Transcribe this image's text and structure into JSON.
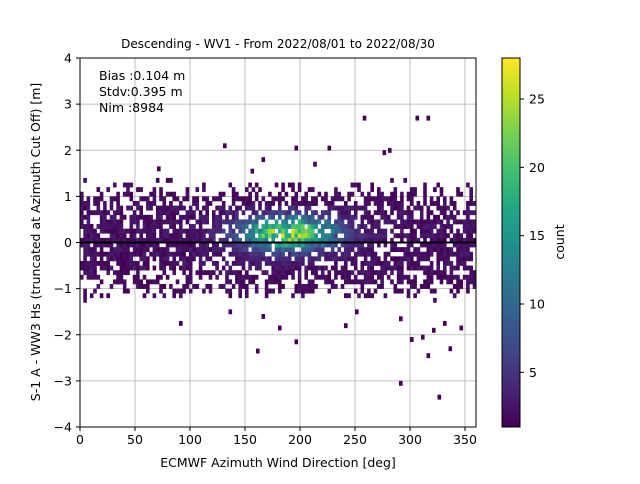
{
  "chart_data": {
    "type": "heatmap",
    "title": "Descending - WV1 - From 2022/08/01 to 2022/08/30",
    "xlabel": "ECMWF Azimuth Wind Direction [deg]",
    "ylabel": "S-1 A - WW3 Hs (truncated at Azimuth Cut Off) [m]",
    "xlim": [
      0,
      360
    ],
    "ylim": [
      -4,
      4
    ],
    "xticks": [
      "0",
      "50",
      "100",
      "150",
      "200",
      "250",
      "300",
      "350"
    ],
    "yticks": [
      "−4",
      "−3",
      "−2",
      "−1",
      "0",
      "1",
      "2",
      "3",
      "4"
    ],
    "grid": true,
    "colormap": "viridis",
    "colorbar": {
      "label": "count",
      "range": [
        1,
        28
      ],
      "ticks": [
        "5",
        "10",
        "15",
        "20",
        "25"
      ]
    },
    "stats_box": {
      "bias": "Bias :0.104 m",
      "stdv": "Stdv:0.395 m",
      "nim": "Nim :8984"
    },
    "zero_line": 0,
    "density_summary": {
      "core_band_y": [
        -1,
        1
      ],
      "peak_x": 190,
      "peak_y": 0.2,
      "peak_count": 28
    },
    "outliers": [
      {
        "x": 130,
        "y": 2.1
      },
      {
        "x": 257,
        "y": 2.7
      },
      {
        "x": 305,
        "y": 2.7
      },
      {
        "x": 315,
        "y": 2.7
      },
      {
        "x": 275,
        "y": 1.95
      },
      {
        "x": 280,
        "y": 2.0
      },
      {
        "x": 195,
        "y": 2.05
      },
      {
        "x": 225,
        "y": 2.05
      },
      {
        "x": 165,
        "y": 1.8
      },
      {
        "x": 212,
        "y": 1.7
      },
      {
        "x": 70,
        "y": 1.6
      },
      {
        "x": 155,
        "y": 1.55
      },
      {
        "x": 90,
        "y": -1.75
      },
      {
        "x": 135,
        "y": -1.5
      },
      {
        "x": 165,
        "y": -1.6
      },
      {
        "x": 180,
        "y": -1.85
      },
      {
        "x": 195,
        "y": -2.15
      },
      {
        "x": 160,
        "y": -2.35
      },
      {
        "x": 290,
        "y": -3.05
      },
      {
        "x": 325,
        "y": -3.35
      },
      {
        "x": 315,
        "y": -2.45
      },
      {
        "x": 335,
        "y": -2.3
      },
      {
        "x": 300,
        "y": -2.1
      },
      {
        "x": 310,
        "y": -2.05
      },
      {
        "x": 320,
        "y": -1.9
      },
      {
        "x": 345,
        "y": -1.85
      },
      {
        "x": 240,
        "y": -1.8
      },
      {
        "x": 250,
        "y": -1.5
      },
      {
        "x": 290,
        "y": -1.65
      },
      {
        "x": 330,
        "y": -1.75
      }
    ]
  }
}
